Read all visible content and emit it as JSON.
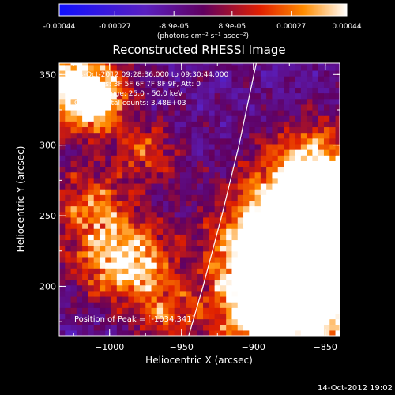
{
  "colorbar": {
    "ticks": [
      -0.00044,
      -0.00027,
      -8.9e-05,
      8.9e-05,
      0.00027,
      0.00044
    ],
    "tick_labels": [
      "-0.00044",
      "-0.00027",
      "-8.9e-05",
      "8.9e-05",
      "0.00027",
      "0.00044"
    ],
    "unit_label": "(photons cm⁻² s⁻¹ asec⁻²)",
    "range": [
      -0.00044,
      0.00044
    ]
  },
  "chart_data": {
    "type": "heatmap",
    "title": "Reconstructed RHESSI Image",
    "xlabel": "Heliocentric X (arcsec)",
    "ylabel": "Heliocentric Y (arcsec)",
    "xlim": [
      -1035,
      -840
    ],
    "ylim": [
      165,
      358
    ],
    "x_ticks": [
      -1000,
      -950,
      -900,
      -850
    ],
    "x_tick_labels": [
      "−1000",
      "−950",
      "−900",
      "−850"
    ],
    "y_ticks": [
      200,
      250,
      300,
      350
    ],
    "y_tick_labels": [
      "200",
      "250",
      "300",
      "350"
    ],
    "annotations": [
      "14-Oct-2012 09:28:36.000 to 09:30:44.000",
      "Detectors: 3F 5F 6F 7F 8F 9F, Att: 0",
      "Energy Range: 25.0 - 50.0 keV",
      "Clean    Total counts: 3.48E+03"
    ],
    "peak_label": "Position of Peak = [-1034,341]",
    "peak_position": [
      -1034,
      341
    ],
    "colormap": "hot (blue-purple-red-yellow-white)",
    "limb_curve": [
      [
        -945,
        165
      ],
      [
        -935,
        200
      ],
      [
        -922,
        250
      ],
      [
        -910,
        300
      ],
      [
        -898,
        358
      ]
    ],
    "bright_regions": [
      {
        "x": -1025,
        "y": 345,
        "strength": 0.95,
        "size": 22
      },
      {
        "x": -1010,
        "y": 330,
        "strength": 0.6,
        "size": 14
      },
      {
        "x": -860,
        "y": 200,
        "strength": 1.0,
        "size": 40
      },
      {
        "x": -865,
        "y": 240,
        "strength": 0.85,
        "size": 32
      },
      {
        "x": -855,
        "y": 280,
        "strength": 0.75,
        "size": 22
      },
      {
        "x": -880,
        "y": 215,
        "strength": 0.7,
        "size": 26
      },
      {
        "x": -890,
        "y": 185,
        "strength": 0.65,
        "size": 20
      },
      {
        "x": -1000,
        "y": 225,
        "strength": 0.55,
        "size": 22
      },
      {
        "x": -980,
        "y": 215,
        "strength": 0.5,
        "size": 18
      },
      {
        "x": -1015,
        "y": 260,
        "strength": 0.45,
        "size": 18
      },
      {
        "x": -975,
        "y": 295,
        "strength": 0.45,
        "size": 15
      },
      {
        "x": -960,
        "y": 180,
        "strength": 0.45,
        "size": 15
      }
    ]
  },
  "footer": {
    "timestamp": "14-Oct-2012 19:02"
  }
}
